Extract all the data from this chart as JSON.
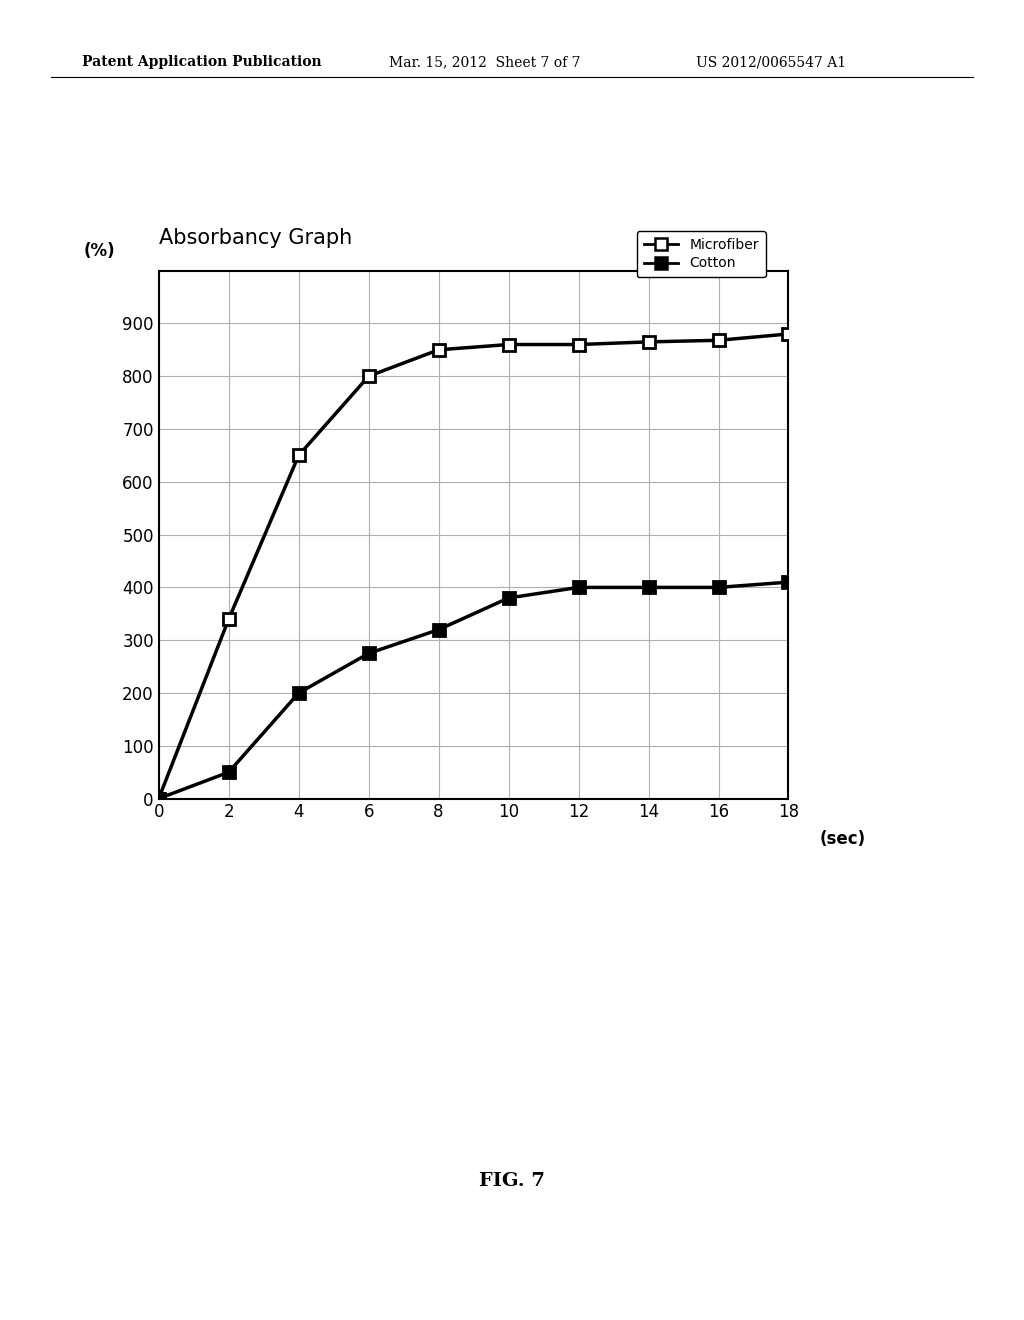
{
  "title": "Absorbancy Graph",
  "xlabel": "(sec)",
  "ylabel": "(%)",
  "microfiber_x": [
    0,
    2,
    4,
    6,
    8,
    10,
    12,
    14,
    16,
    18
  ],
  "microfiber_y": [
    0,
    340,
    650,
    800,
    850,
    860,
    860,
    865,
    868,
    880
  ],
  "cotton_x": [
    0,
    2,
    4,
    6,
    8,
    10,
    12,
    14,
    16,
    18
  ],
  "cotton_y": [
    0,
    50,
    200,
    275,
    320,
    380,
    400,
    400,
    400,
    410
  ],
  "xlim": [
    0,
    18
  ],
  "ylim": [
    0,
    1000
  ],
  "yticks": [
    0,
    100,
    200,
    300,
    400,
    500,
    600,
    700,
    800,
    900
  ],
  "xticks": [
    0,
    2,
    4,
    6,
    8,
    10,
    12,
    14,
    16,
    18
  ],
  "microfiber_color": "#000000",
  "cotton_color": "#000000",
  "background_color": "#ffffff",
  "grid_color": "#b0b0b0",
  "line_width": 2.5,
  "marker_size": 8,
  "patent_header_left": "Patent Application Publication",
  "patent_header_center": "Mar. 15, 2012  Sheet 7 of 7",
  "patent_header_right": "US 2012/0065547 A1",
  "fig_label": "FIG. 7",
  "legend_microfiber": "Microfiber",
  "legend_cotton": "Cotton"
}
